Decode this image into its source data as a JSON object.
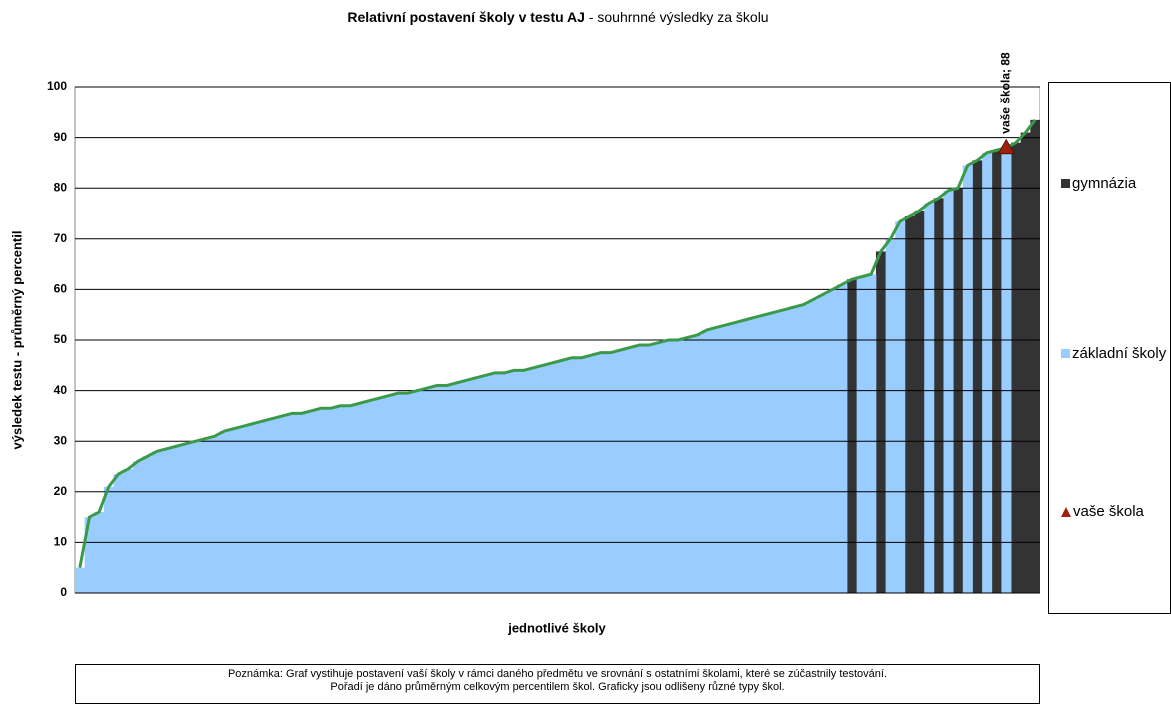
{
  "chart_data": {
    "type": "bar",
    "title": "Relativní postavení školy v testu AJ",
    "subtitle": "- souhrnné výsledky za školu",
    "y_label": "výsledek testu - průměrný percentil",
    "x_label": "jednotlivé školy",
    "note": "Poznámka: Graf vystihuje postavení vaší školy v rámci daného předmětu ve srovnání s ostatními školami, které se zúčastnily testování. Pořadí je dáno průměrným celkovým percentilem škol. Graficky jsou odlišeny různé typy škol.",
    "ylim": [
      0,
      100
    ],
    "yticks": [
      0,
      10,
      20,
      30,
      40,
      50,
      60,
      70,
      80,
      90,
      100
    ],
    "grid": true,
    "line_color": "#3a9a4a",
    "series": [
      {
        "name": "gymnázia",
        "color": "#333333",
        "values": [
          null,
          null,
          null,
          null,
          null,
          null,
          null,
          null,
          null,
          null,
          null,
          null,
          null,
          null,
          null,
          null,
          null,
          null,
          null,
          null,
          null,
          null,
          null,
          null,
          null,
          null,
          null,
          null,
          null,
          null,
          null,
          null,
          null,
          null,
          null,
          null,
          null,
          null,
          null,
          null,
          null,
          null,
          null,
          null,
          null,
          null,
          null,
          null,
          null,
          null,
          null,
          null,
          null,
          null,
          null,
          null,
          null,
          null,
          null,
          null,
          null,
          null,
          null,
          null,
          null,
          null,
          null,
          null,
          null,
          null,
          null,
          null,
          null,
          null,
          null,
          null,
          null,
          null,
          null,
          null,
          62,
          null,
          null,
          67.5,
          null,
          null,
          74.5,
          75.5,
          null,
          78,
          null,
          80,
          null,
          85.5,
          null,
          87.5,
          null,
          89,
          91,
          93.5
        ]
      },
      {
        "name": "základní školy",
        "color": "#99ccff",
        "values": [
          5,
          15,
          16,
          21,
          23.5,
          24.5,
          26,
          27,
          28,
          28.5,
          29,
          29.5,
          30,
          30.5,
          31,
          32,
          32.5,
          33,
          33.5,
          34,
          34.5,
          35,
          35.5,
          35.5,
          36,
          36.5,
          36.5,
          37,
          37,
          37.5,
          38,
          38.5,
          39,
          39.5,
          39.5,
          40,
          40.5,
          41,
          41,
          41.5,
          42,
          42.5,
          43,
          43.5,
          43.5,
          44,
          44,
          44.5,
          45,
          45.5,
          46,
          46.5,
          46.5,
          47,
          47.5,
          47.5,
          48,
          48.5,
          49,
          49,
          49.5,
          50,
          50,
          50.5,
          51,
          52,
          52.5,
          53,
          53.5,
          54,
          54.5,
          55,
          55.5,
          56,
          56.5,
          57,
          58,
          59,
          60,
          61,
          null,
          62.5,
          63,
          null,
          70,
          73.5,
          null,
          null,
          77,
          null,
          79.5,
          null,
          84.5,
          null,
          87,
          null,
          88,
          null,
          null,
          null
        ]
      },
      {
        "name": "vaše škola",
        "color": "#a0200f",
        "values": [
          null,
          null,
          null,
          null,
          null,
          null,
          null,
          null,
          null,
          null,
          null,
          null,
          null,
          null,
          null,
          null,
          null,
          null,
          null,
          null,
          null,
          null,
          null,
          null,
          null,
          null,
          null,
          null,
          null,
          null,
          null,
          null,
          null,
          null,
          null,
          null,
          null,
          null,
          null,
          null,
          null,
          null,
          null,
          null,
          null,
          null,
          null,
          null,
          null,
          null,
          null,
          null,
          null,
          null,
          null,
          null,
          null,
          null,
          null,
          null,
          null,
          null,
          null,
          null,
          null,
          null,
          null,
          null,
          null,
          null,
          null,
          null,
          null,
          null,
          null,
          null,
          null,
          null,
          null,
          null,
          null,
          null,
          null,
          null,
          null,
          null,
          null,
          null,
          null,
          null,
          null,
          null,
          null,
          null,
          null,
          null,
          88,
          null,
          null,
          null
        ],
        "value_labels": [
          null,
          null,
          null,
          null,
          null,
          null,
          null,
          null,
          null,
          null,
          null,
          null,
          null,
          null,
          null,
          null,
          null,
          null,
          null,
          null,
          null,
          null,
          null,
          null,
          null,
          null,
          null,
          null,
          null,
          null,
          null,
          null,
          null,
          null,
          null,
          null,
          null,
          null,
          null,
          null,
          null,
          null,
          null,
          null,
          null,
          null,
          null,
          null,
          null,
          null,
          null,
          null,
          null,
          null,
          null,
          null,
          null,
          null,
          null,
          null,
          null,
          null,
          null,
          null,
          null,
          null,
          null,
          null,
          null,
          null,
          null,
          null,
          null,
          null,
          null,
          null,
          null,
          null,
          null,
          null,
          null,
          null,
          null,
          null,
          null,
          null,
          null,
          null,
          null,
          null,
          null,
          null,
          null,
          null,
          null,
          null,
          "vaše škola; 88",
          null,
          null,
          null
        ]
      }
    ]
  }
}
